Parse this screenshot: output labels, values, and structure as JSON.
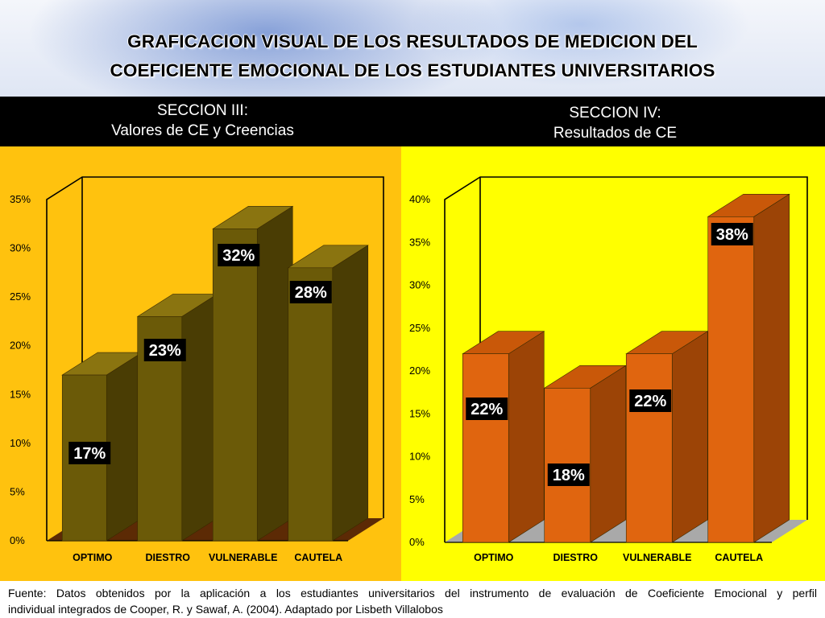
{
  "title": {
    "line1": "GRAFICACION VISUAL DE  LOS RESULTADOS DE MEDICION DEL",
    "line2": "COEFICIENTE EMOCIONAL DE LOS ESTUDIANTES UNIVERSITARIOS"
  },
  "panels": [
    {
      "header_line1": "SECCION III:",
      "header_line2": "Valores de CE y Creencias",
      "background": "#ffc20e"
    },
    {
      "header_line1": "SECCION IV:",
      "header_line2": "Resultados de CE",
      "background": "#ffff00"
    }
  ],
  "chart_data": [
    {
      "type": "bar",
      "title": "",
      "categories": [
        "OPTIMO",
        "DIESTRO",
        "VULNERABLE",
        "CAUTELA"
      ],
      "values": [
        17,
        23,
        32,
        28
      ],
      "data_labels": [
        "17%",
        "23%",
        "32%",
        "28%"
      ],
      "ylim": [
        0,
        35
      ],
      "yticks": [
        "0%",
        "5%",
        "10%",
        "15%",
        "20%",
        "25%",
        "30%",
        "35%"
      ],
      "grid": false,
      "three_d": true,
      "colors": {
        "bar_front": "#6b5a08",
        "bar_side": "#4a3d04",
        "bar_top": "#8a7410",
        "floor": "#5c2a05"
      }
    },
    {
      "type": "bar",
      "title": "",
      "categories": [
        "OPTIMO",
        "DIESTRO",
        "VULNERABLE",
        "CAUTELA"
      ],
      "values": [
        22,
        18,
        22,
        38
      ],
      "data_labels": [
        "22%",
        "18%",
        "22%",
        "38%"
      ],
      "ylim": [
        0,
        40
      ],
      "yticks": [
        "0%",
        "5%",
        "10%",
        "15%",
        "20%",
        "25%",
        "30%",
        "35%",
        "40%"
      ],
      "grid": false,
      "three_d": true,
      "colors": {
        "bar_front": "#e0650f",
        "bar_side": "#9c4406",
        "bar_top": "#c95809",
        "floor": "#a9a9a9"
      }
    }
  ],
  "footer": {
    "line1": "Fuente: Datos obtenidos por la aplicación a los estudiantes universitarios del instrumento  de evaluación de Coeficiente Emocional y perfil",
    "line2": "individual integrados  de Cooper, R. y Sawaf, A. (2004). Adaptado por Lisbeth Villalobos"
  }
}
